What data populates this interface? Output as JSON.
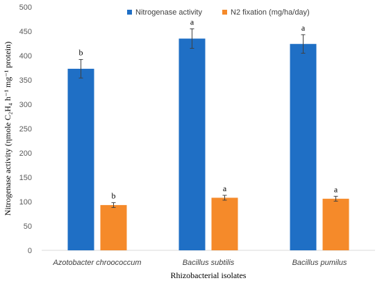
{
  "chart_data": {
    "type": "bar",
    "categories": [
      "Azotobacter chroococcum",
      "Bacillus subtilis",
      "Bacillus pumilus"
    ],
    "series": [
      {
        "name": "Nitrogenase activity",
        "color": "#1F6FC5",
        "values": [
          373,
          435,
          424
        ],
        "errors": [
          19,
          20,
          19
        ],
        "labels": [
          "b",
          "a",
          "a"
        ]
      },
      {
        "name": "N2 fixation (mg/ha/day)",
        "color": "#F58A2A",
        "values": [
          93,
          108,
          106
        ],
        "errors": [
          5,
          5,
          5
        ],
        "labels": [
          "b",
          "a",
          "a"
        ]
      }
    ],
    "ylim": [
      0,
      500
    ],
    "yticks": [
      0,
      50,
      100,
      150,
      200,
      250,
      300,
      350,
      400,
      450,
      500
    ],
    "xlabel": "Rhizobacterial isolates",
    "ylabel": "Nitrogenase activity (ηmole C₂H₄ h⁻¹ mg⁻¹ protein)",
    "legend_position": "top",
    "grid": false
  }
}
